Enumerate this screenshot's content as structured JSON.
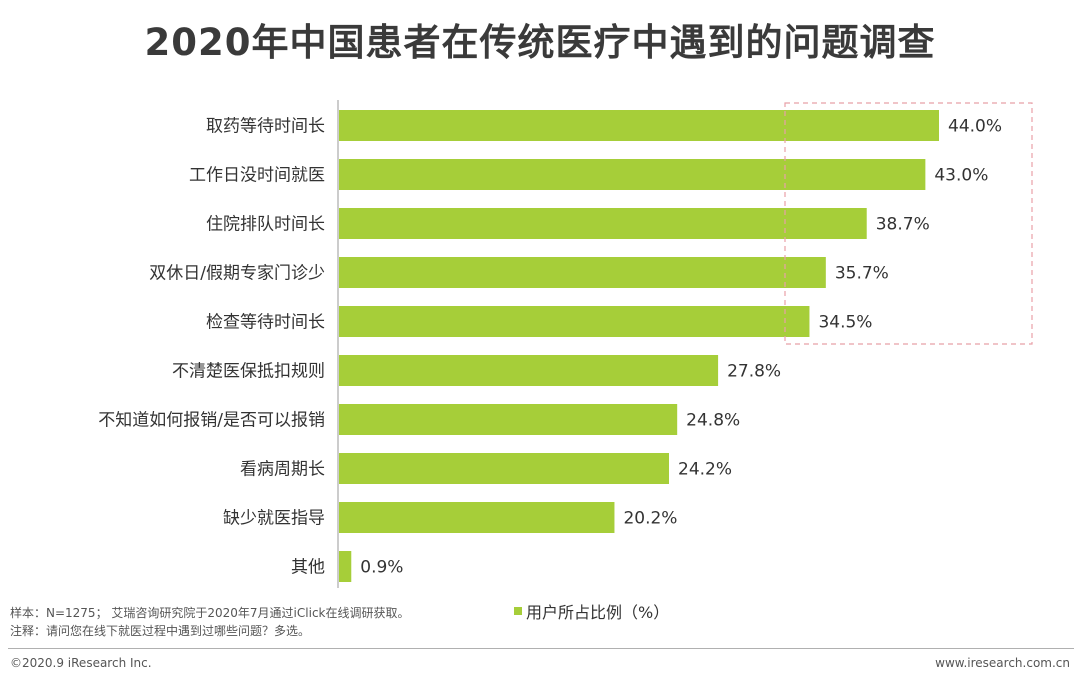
{
  "title": "2020年中国患者在传统医疗中遇到的问题调查",
  "chart_data": {
    "type": "bar",
    "orientation": "horizontal",
    "title": "2020年中国患者在传统医疗中遇到的问题调查",
    "categories": [
      "取药等待时间长",
      "工作日没时间就医",
      "住院排队时间长",
      "双休日/假期专家门诊少",
      "检查等待时间长",
      "不清楚医保抵扣规则",
      "不知道如何报销/是否可以报销",
      "看病周期长",
      "缺少就医指导",
      "其他"
    ],
    "values": [
      44.0,
      43.0,
      38.7,
      35.7,
      34.5,
      27.8,
      24.8,
      24.2,
      20.2,
      0.9
    ],
    "value_labels": [
      "44.0%",
      "43.0%",
      "38.7%",
      "35.7%",
      "34.5%",
      "27.8%",
      "24.8%",
      "24.2%",
      "20.2%",
      "0.9%"
    ],
    "series_name": "用户所占比例（%）",
    "xlim": [
      0,
      50
    ],
    "highlight_categories": 5,
    "bar_color": "#a6ce39",
    "highlight_color": "#e8a0a8"
  },
  "legend": {
    "label": "用户所占比例（%）"
  },
  "notes": {
    "sample": "样本：N=1275； 艾瑞咨询研究院于2020年7月通过iClick在线调研获取。",
    "remark": "注释：请问您在线下就医过程中遇到过哪些问题？多选。"
  },
  "footer": {
    "copyright": "©2020.9 iResearch Inc.",
    "website": "www.iresearch.com.cn"
  }
}
